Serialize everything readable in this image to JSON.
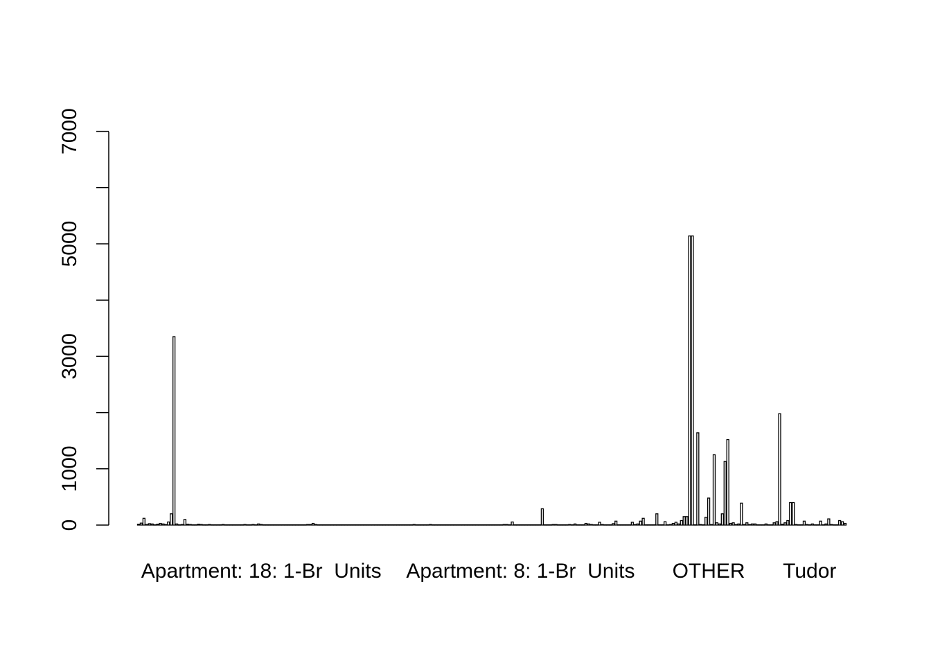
{
  "chart_data": {
    "type": "bar",
    "title": "",
    "xlabel": "",
    "ylabel": "",
    "ylim": [
      0,
      7500
    ],
    "yticks": [
      0,
      1000,
      2000,
      3000,
      4000,
      5000,
      6000,
      7000
    ],
    "ytick_labels": [
      {
        "value": 0,
        "label": "0"
      },
      {
        "value": 1000,
        "label": "1000"
      },
      {
        "value": 3000,
        "label": "3000"
      },
      {
        "value": 5000,
        "label": "5000"
      },
      {
        "value": 7000,
        "label": "7000"
      }
    ],
    "grid": false,
    "legend": "none",
    "bar_count": 250,
    "category_labels": [
      {
        "index": 45,
        "label": "Apartment: 18: 1-Br  Units"
      },
      {
        "index": 140,
        "label": "Apartment: 8: 1-Br  Units"
      },
      {
        "index": 209,
        "label": "OTHER"
      },
      {
        "index": 246,
        "label": "Tudor"
      }
    ],
    "values": [
      15,
      35,
      120,
      10,
      25,
      20,
      5,
      15,
      30,
      20,
      10,
      55,
      200,
      3350,
      20,
      5,
      10,
      100,
      15,
      10,
      5,
      5,
      15,
      10,
      5,
      5,
      10,
      5,
      5,
      5,
      5,
      10,
      5,
      5,
      5,
      5,
      5,
      5,
      5,
      10,
      5,
      5,
      10,
      5,
      20,
      10,
      5,
      5,
      5,
      5,
      5,
      5,
      5,
      5,
      5,
      5,
      5,
      5,
      5,
      5,
      5,
      5,
      10,
      10,
      30,
      10,
      5,
      5,
      5,
      5,
      5,
      5,
      5,
      5,
      5,
      5,
      5,
      5,
      5,
      5,
      5,
      5,
      5,
      5,
      5,
      5,
      5,
      5,
      5,
      5,
      5,
      5,
      5,
      5,
      5,
      5,
      5,
      5,
      5,
      5,
      5,
      10,
      5,
      5,
      5,
      5,
      5,
      10,
      5,
      5,
      5,
      5,
      5,
      5,
      5,
      5,
      5,
      5,
      5,
      5,
      5,
      5,
      5,
      5,
      5,
      5,
      5,
      5,
      5,
      5,
      5,
      5,
      5,
      5,
      10,
      10,
      5,
      55,
      5,
      5,
      5,
      5,
      5,
      5,
      5,
      5,
      5,
      5,
      290,
      5,
      5,
      5,
      10,
      10,
      5,
      5,
      5,
      5,
      10,
      5,
      20,
      5,
      5,
      5,
      30,
      20,
      10,
      5,
      5,
      50,
      10,
      5,
      5,
      5,
      25,
      70,
      5,
      5,
      5,
      5,
      5,
      50,
      10,
      20,
      70,
      120,
      5,
      5,
      5,
      5,
      200,
      5,
      5,
      60,
      5,
      10,
      30,
      50,
      20,
      80,
      150,
      150,
      5140,
      5140,
      5,
      1640,
      10,
      5,
      140,
      480,
      10,
      1250,
      40,
      20,
      200,
      1130,
      1520,
      30,
      40,
      10,
      20,
      390,
      10,
      40,
      10,
      20,
      20,
      5,
      5,
      5,
      20,
      5,
      5,
      40,
      60,
      1980,
      15,
      40,
      80,
      400,
      400,
      10,
      5,
      5,
      70,
      10,
      5,
      20,
      5,
      5,
      70,
      5,
      20,
      110,
      10,
      5,
      5,
      80,
      60,
      30
    ]
  }
}
